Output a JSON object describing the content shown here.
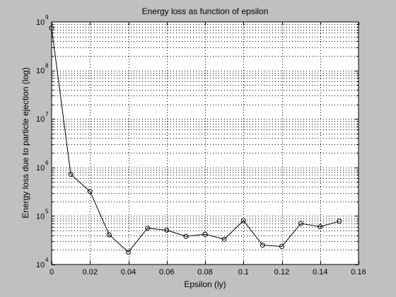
{
  "chart_data": {
    "type": "line",
    "title": "Energy loss as function of epsilon",
    "xlabel": "Epsilon (ly)",
    "ylabel": "Energy loss due to particle ejection (log)",
    "y_scale": "log",
    "xlim": [
      0,
      0.16
    ],
    "ylim": [
      10000,
      1000000000
    ],
    "x_ticks": [
      0,
      0.02,
      0.04,
      0.06,
      0.08,
      0.1,
      0.12,
      0.14,
      0.16
    ],
    "x_tick_labels": [
      "0",
      "0.02",
      "0.04",
      "0.06",
      "0.08",
      "0.1",
      "0.12",
      "0.14",
      "0.16"
    ],
    "y_ticks": [
      {
        "value": 10000,
        "base": "10",
        "exponent": "4"
      },
      {
        "value": 100000,
        "base": "10",
        "exponent": "5"
      },
      {
        "value": 1000000,
        "base": "10",
        "exponent": "6"
      },
      {
        "value": 10000000,
        "base": "10",
        "exponent": "7"
      },
      {
        "value": 100000000,
        "base": "10",
        "exponent": "8"
      },
      {
        "value": 1000000000,
        "base": "10",
        "exponent": "9"
      }
    ],
    "grid": true,
    "marker": "circle",
    "line_color": "#000000",
    "background_color": "#c0c0c0",
    "plot_background_color": "#ffffff",
    "series": [
      {
        "x": [
          0,
          0.01,
          0.02,
          0.03,
          0.04,
          0.05,
          0.06,
          0.07,
          0.08,
          0.09,
          0.1,
          0.11,
          0.12,
          0.13,
          0.14,
          0.15
        ],
        "y": [
          750000000,
          720000,
          320000,
          41000,
          18000,
          56000,
          51000,
          38000,
          42000,
          33000,
          80000,
          25000,
          23500,
          70000,
          60000,
          78000
        ]
      }
    ]
  }
}
